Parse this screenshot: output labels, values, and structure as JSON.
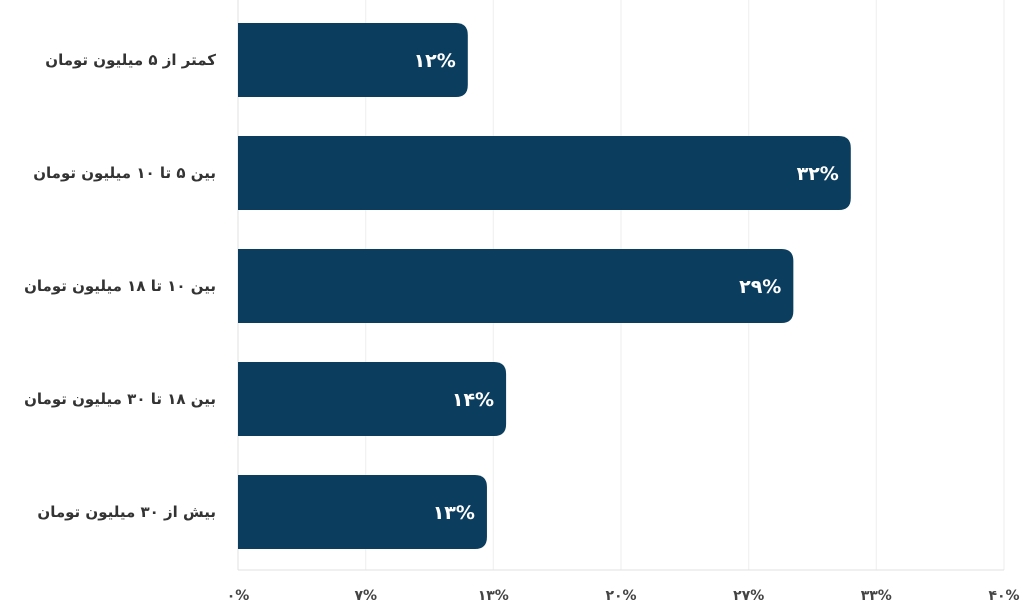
{
  "chart_data": {
    "type": "bar",
    "orientation": "horizontal",
    "categories": [
      "کمتر از ۵ میلیون تومان",
      "بین ۵ تا ۱۰ میلیون تومان",
      "بین ۱۰ تا ۱۸ میلیون تومان",
      "بین ۱۸ تا ۳۰ میلیون تومان",
      "بیش از ۳۰ میلیون تومان"
    ],
    "values": [
      12,
      32,
      29,
      14,
      13
    ],
    "data_labels": [
      "۱۲%",
      "۳۲%",
      "۲۹%",
      "۱۴%",
      "۱۳%"
    ],
    "xlim": [
      0,
      40
    ],
    "x_ticks": [
      0,
      6.67,
      13.33,
      20,
      26.67,
      33.33,
      40
    ],
    "x_tick_labels": [
      "۰%",
      "۷%",
      "۱۳%",
      "۲۰%",
      "۲۷%",
      "۳۳%",
      "۴۰%"
    ],
    "title": "",
    "xlabel": "",
    "ylabel": "",
    "grid": true,
    "legend": "none",
    "colors": {
      "bar": "#0b3d5e",
      "grid": "#eeeeee",
      "axis": "#e0e0e0"
    }
  }
}
